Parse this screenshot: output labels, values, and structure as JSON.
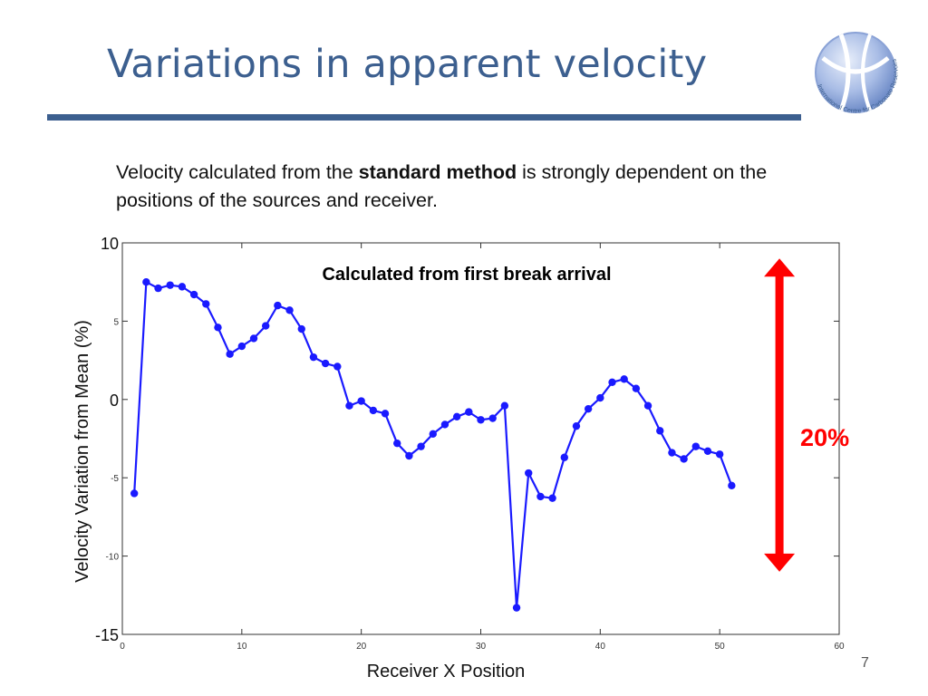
{
  "slide": {
    "title": "Variations in apparent velocity",
    "body_part1": "Velocity calculated from the ",
    "body_bold": "standard method",
    "body_part2": " is strongly dependent on the positions of the sources and receiver.",
    "slide_number": "7",
    "logo_text": "International Centre for Carbonate Reservoirs"
  },
  "colors": {
    "title": "#3c5f8f",
    "rule": "#3c5f8f",
    "series": "#1a1aff",
    "arrow": "#ff0000"
  },
  "chart_data": {
    "type": "line",
    "title": "Calculated from first break arrival",
    "xlabel": "Receiver X Position",
    "ylabel": "Velocity Variation from Mean (%)",
    "xlim": [
      0,
      60
    ],
    "ylim": [
      -15,
      10
    ],
    "x_ticks": [
      "0",
      "10",
      "20",
      "30",
      "40",
      "50",
      "60"
    ],
    "y_ticks": [
      {
        "value": 10,
        "label": "10",
        "large": true
      },
      {
        "value": 5,
        "label": "5",
        "large": false
      },
      {
        "value": 0,
        "label": "0",
        "large": true
      },
      {
        "value": -5,
        "label": "-5",
        "large": false
      },
      {
        "value": -10,
        "label": "-10",
        "large": false
      },
      {
        "value": -15,
        "label": "-15",
        "large": true
      }
    ],
    "grid": false,
    "series": [
      {
        "x": [
          1,
          2,
          3,
          4,
          5,
          6,
          7,
          8,
          9,
          10,
          11,
          12,
          13,
          14,
          15,
          16,
          17,
          18,
          19,
          20,
          21,
          22,
          23,
          24,
          25,
          26,
          27,
          28,
          29,
          30,
          31,
          32,
          33,
          34,
          35,
          36,
          37,
          38,
          39,
          40,
          41,
          42,
          43,
          44,
          45,
          46,
          47,
          48,
          49,
          50,
          51
        ],
        "values": [
          -6.0,
          7.5,
          7.1,
          7.3,
          7.2,
          6.7,
          6.1,
          4.6,
          2.9,
          3.4,
          3.9,
          4.7,
          6.0,
          5.7,
          4.5,
          2.7,
          2.3,
          2.1,
          -0.4,
          -0.1,
          -0.7,
          -0.9,
          -2.8,
          -3.6,
          -3.0,
          -2.2,
          -1.6,
          -1.1,
          -0.8,
          -1.3,
          -1.2,
          -0.4,
          -13.3,
          -4.7,
          -6.2,
          -6.3,
          -3.7,
          -1.7,
          -0.6,
          0.1,
          1.1,
          1.3,
          0.7,
          -0.4,
          -2.0,
          -3.4,
          -3.8,
          -3.0,
          -3.3,
          -3.5,
          -5.5
        ]
      }
    ],
    "annotation": {
      "label": "20%",
      "from": 9.0,
      "to": -11.0,
      "x": 55
    }
  }
}
